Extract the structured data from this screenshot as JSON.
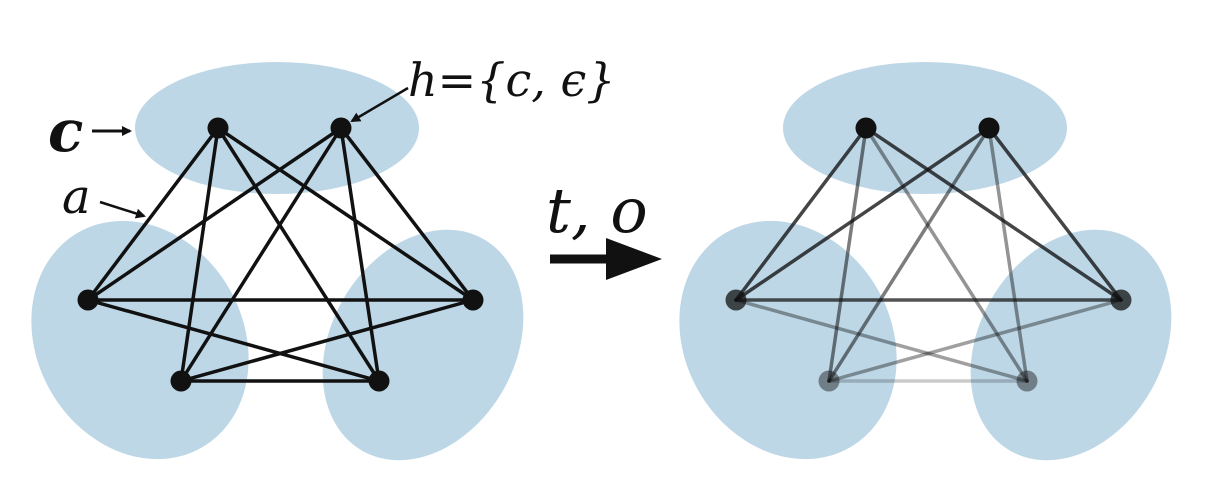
{
  "colors": {
    "blob": "#bdd7e7",
    "ink": "#111111",
    "node": "#111111"
  },
  "labels": {
    "c": "c",
    "a": "a",
    "h_lhs": "h",
    "h_eq": "=",
    "h_set": "{c, ϵ}",
    "transform": "t, o"
  },
  "graph": {
    "nodes": [
      "top-left",
      "top-right",
      "mid-left",
      "mid-right",
      "bottom-left",
      "bottom-right"
    ],
    "edges_left": [
      [
        "top-left",
        "mid-left"
      ],
      [
        "top-left",
        "bottom-left"
      ],
      [
        "top-left",
        "bottom-right"
      ],
      [
        "top-left",
        "mid-right"
      ],
      [
        "top-right",
        "mid-left"
      ],
      [
        "top-right",
        "bottom-left"
      ],
      [
        "top-right",
        "bottom-right"
      ],
      [
        "top-right",
        "mid-right"
      ],
      [
        "mid-left",
        "mid-right"
      ],
      [
        "mid-left",
        "bottom-right"
      ],
      [
        "mid-right",
        "bottom-left"
      ],
      [
        "bottom-left",
        "bottom-right"
      ]
    ],
    "right_edge_opacity": [
      0.78,
      0.55,
      0.45,
      0.78,
      0.78,
      0.55,
      0.45,
      0.78,
      0.72,
      0.4,
      0.4,
      0.22
    ],
    "right_node_opacity": [
      1,
      1,
      0.75,
      0.75,
      0.45,
      0.45
    ]
  }
}
